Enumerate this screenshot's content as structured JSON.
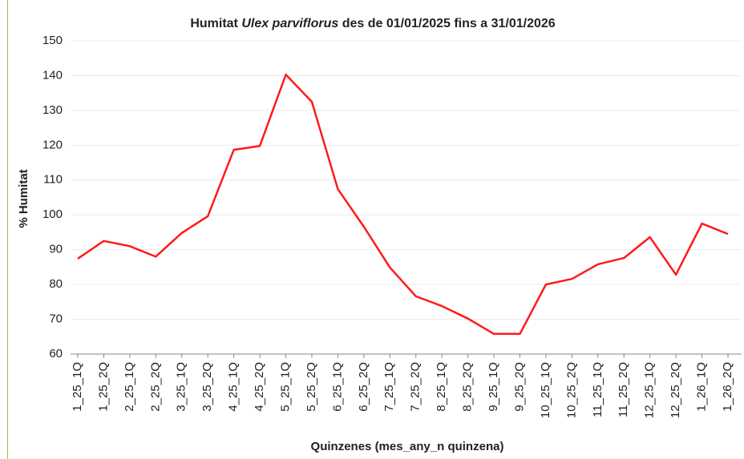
{
  "chart_data": {
    "type": "line",
    "title": [
      "Humitat ",
      "Ulex parviflorus",
      " des de 01/01/2025 fins a 31/01/2026"
    ],
    "x_label": "Quinzenes (mes_any_n quinzena)",
    "y_label": "% Humitat",
    "categories": [
      "1_25_1Q",
      "1_25_2Q",
      "2_25_1Q",
      "2_25_2Q",
      "3_25_1Q",
      "3_25_2Q",
      "4_25_1Q",
      "4_25_2Q",
      "5_25_1Q",
      "5_25_2Q",
      "6_25_1Q",
      "6_25_2Q",
      "7_25_1Q",
      "7_25_2Q",
      "8_25_1Q",
      "8_25_2Q",
      "9_25_1Q",
      "9_25_2Q",
      "10_25_1Q",
      "10_25_2Q",
      "11_25_1Q",
      "11_25_2Q",
      "12_25_1Q",
      "12_25_2Q",
      "1_26_1Q",
      "1_26_2Q"
    ],
    "series": [
      {
        "name": "Humitat",
        "color": "#ff1a1a",
        "values": [
          87.4,
          92.5,
          91,
          88,
          94.8,
          99.6,
          118.7,
          119.8,
          140.3,
          132.5,
          107.4,
          96.6,
          84.9,
          76.6,
          73.8,
          70.2,
          65.8,
          65.8,
          80,
          81.6,
          85.8,
          87.6,
          93.6,
          82.8,
          97.5,
          94.5
        ]
      }
    ],
    "ylim": [
      60,
      150
    ],
    "yticks": [
      60,
      70,
      80,
      90,
      100,
      110,
      120,
      130,
      140,
      150
    ],
    "grid": true
  }
}
